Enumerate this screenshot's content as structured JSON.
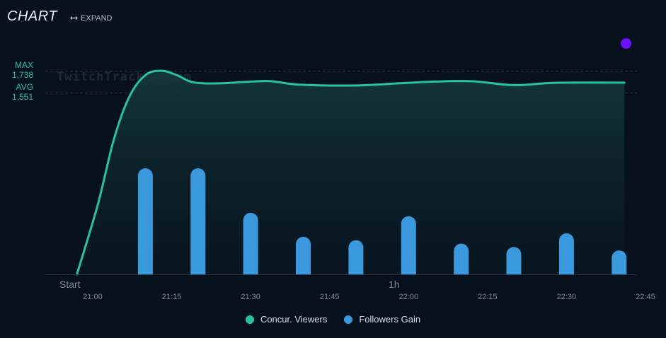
{
  "header": {
    "title": "CHART",
    "expand_label": "EXPAND"
  },
  "stats": {
    "max_label": "MAX",
    "max_value": "1,738",
    "avg_label": "AVG",
    "avg_value": "1,551"
  },
  "watermark": "TwitchTracker.com",
  "colors": {
    "viewers": "#27c39f",
    "followers": "#3a98dc",
    "marker": "#6a12ff",
    "background": "#07111d"
  },
  "chart_data": {
    "type": "line",
    "x_start_label": "Start",
    "x_hour_label": "1h",
    "x_ticks": [
      "21:00",
      "21:15",
      "21:30",
      "21:45",
      "22:00",
      "22:15",
      "22:30",
      "22:45"
    ],
    "legend_position": "bottom",
    "grid": false,
    "reference_lines": [
      {
        "label": "MAX",
        "value": 1738
      },
      {
        "label": "AVG",
        "value": 1551
      }
    ],
    "series": [
      {
        "name": "Concur. Viewers",
        "type": "area",
        "points": [
          [
            "20:57",
            0
          ],
          [
            "21:01",
            600
          ],
          [
            "21:04",
            1150
          ],
          [
            "21:07",
            1520
          ],
          [
            "21:10",
            1700
          ],
          [
            "21:13",
            1738
          ],
          [
            "21:16",
            1700
          ],
          [
            "21:19",
            1640
          ],
          [
            "21:24",
            1630
          ],
          [
            "21:33",
            1650
          ],
          [
            "21:39",
            1620
          ],
          [
            "21:50",
            1612
          ],
          [
            "21:58",
            1630
          ],
          [
            "22:05",
            1645
          ],
          [
            "22:12",
            1648
          ],
          [
            "22:20",
            1615
          ],
          [
            "22:28",
            1635
          ],
          [
            "22:41",
            1636
          ]
        ]
      },
      {
        "name": "Followers Gain",
        "type": "bar",
        "x": [
          "21:10",
          "21:20",
          "21:30",
          "21:40",
          "21:50",
          "22:00",
          "22:10",
          "22:20",
          "22:30",
          "22:40"
        ],
        "values": [
          31,
          31,
          18,
          11,
          10,
          17,
          9,
          8,
          12,
          7
        ]
      }
    ]
  }
}
